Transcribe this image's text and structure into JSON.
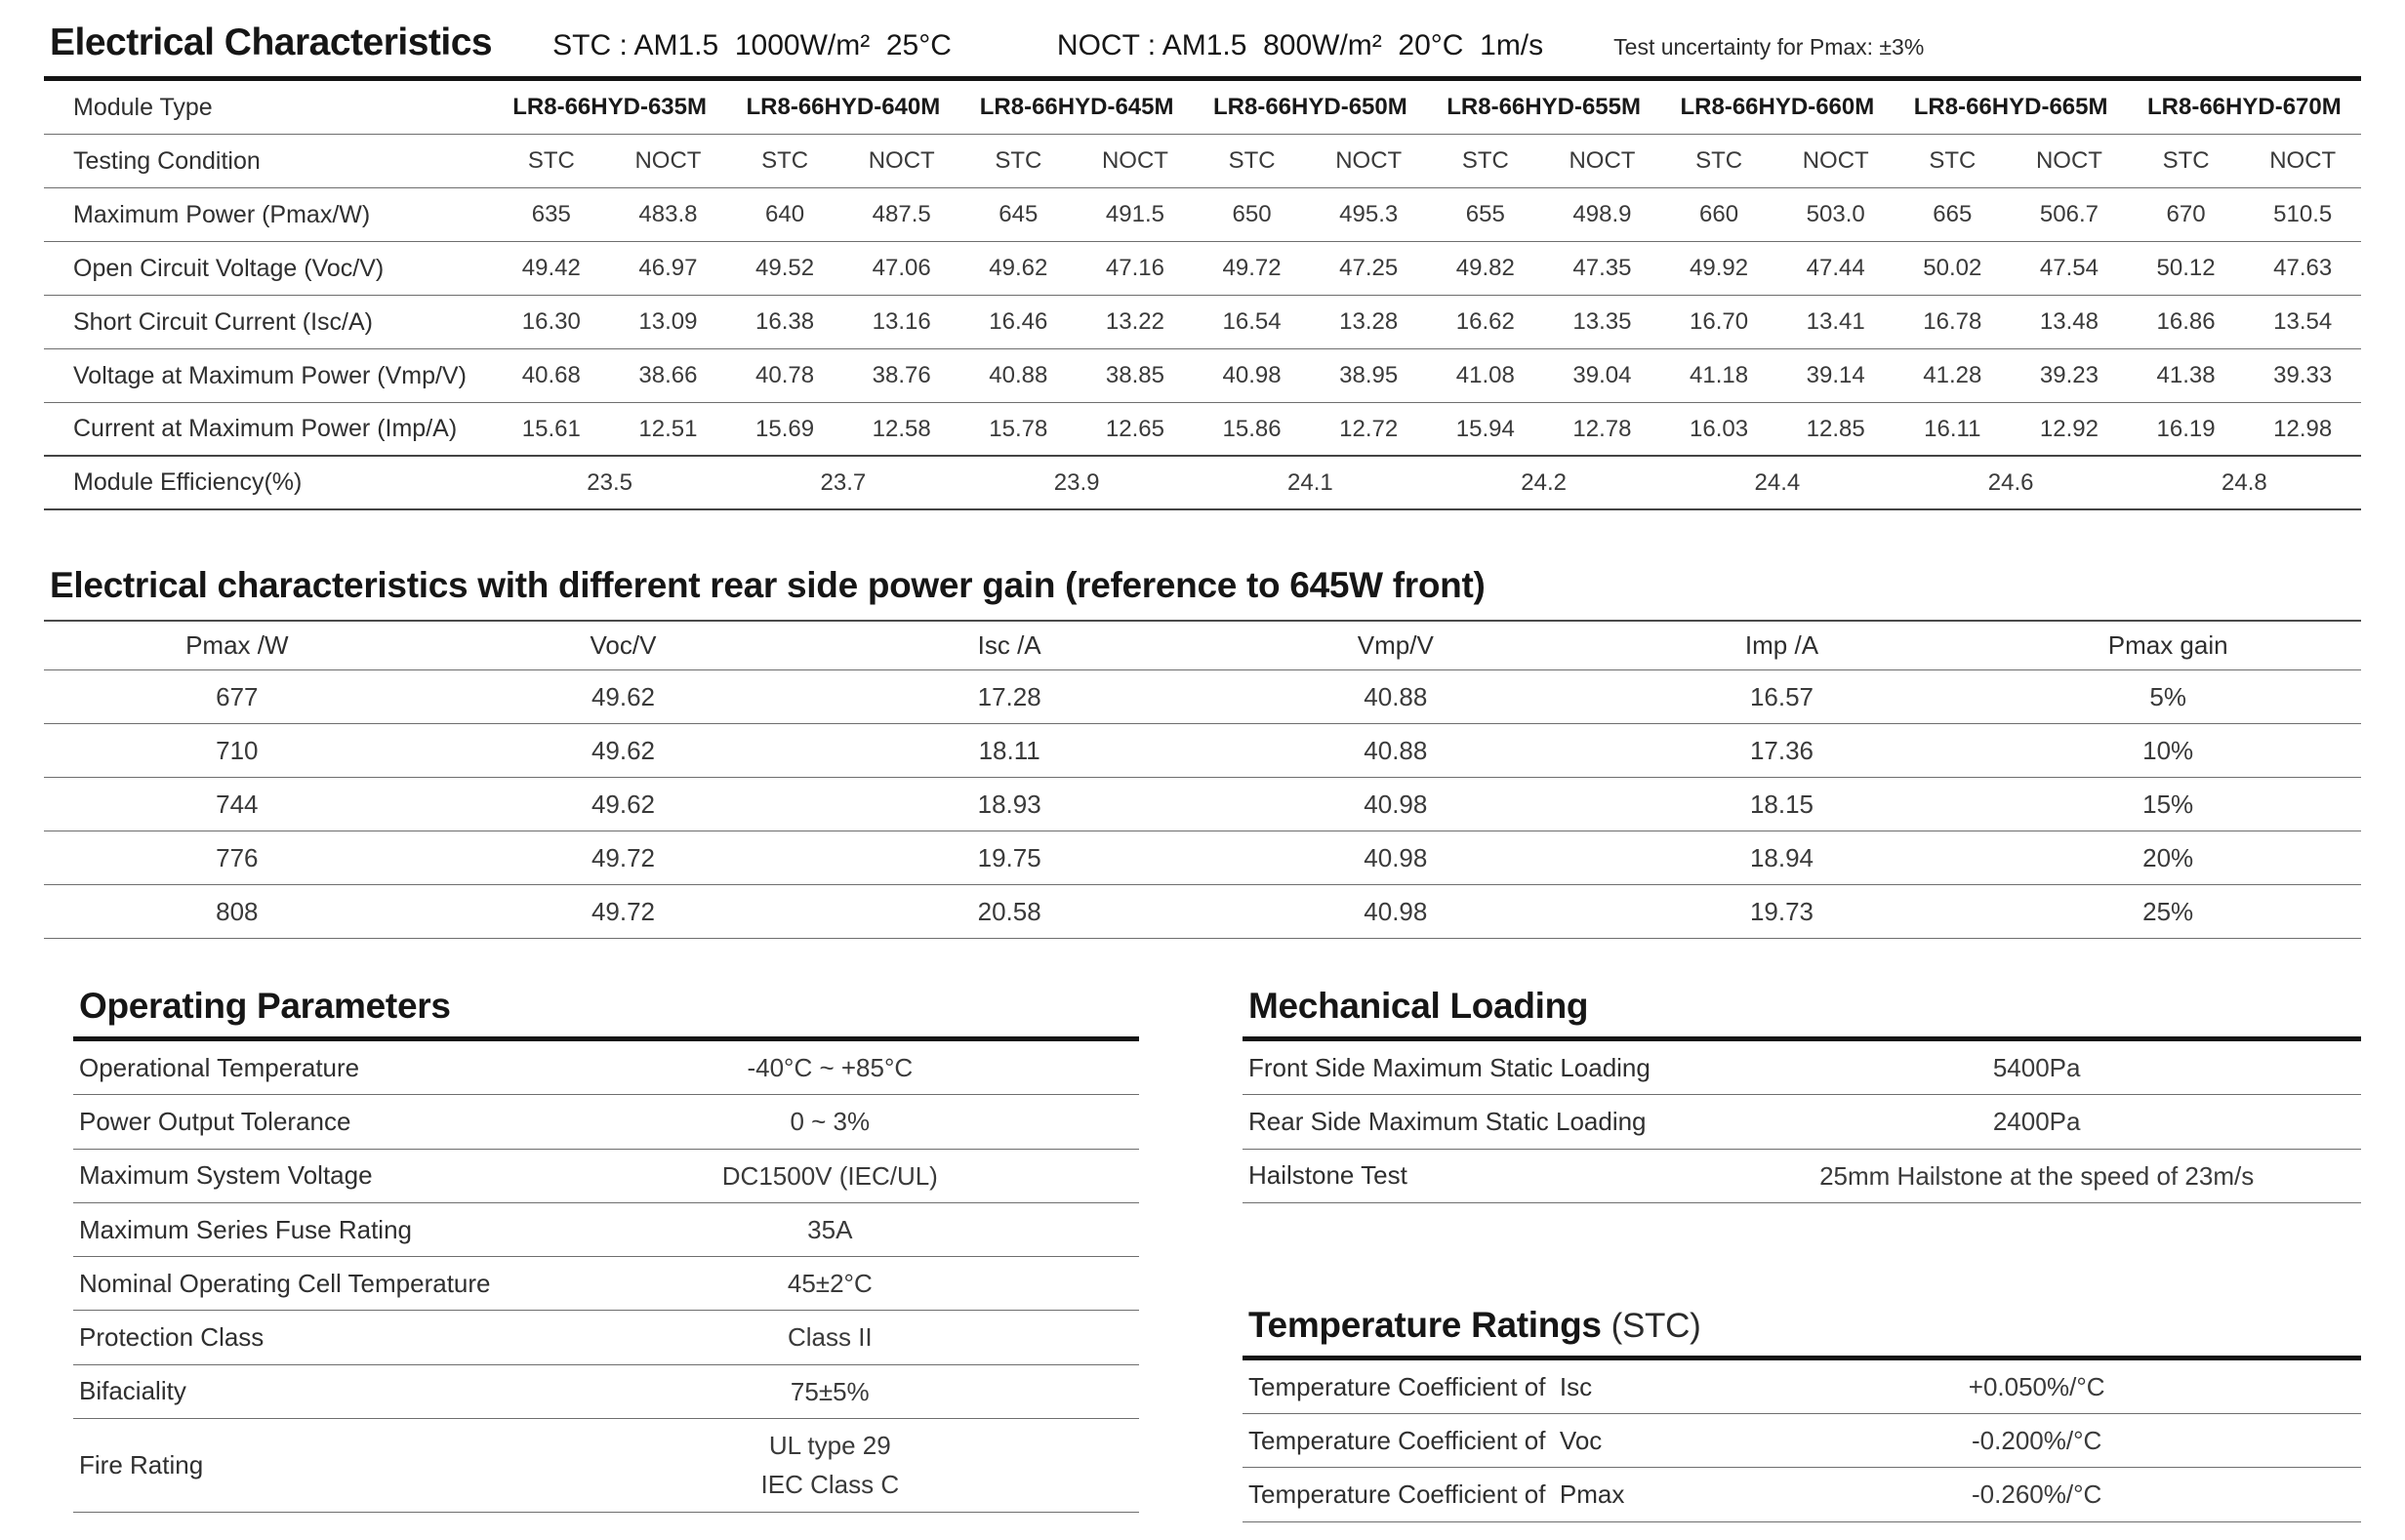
{
  "electrical": {
    "title": "Electrical Characteristics",
    "stc_condition": "STC : AM1.5  1000W/m²  25°C",
    "noct_condition": "NOCT : AM1.5  800W/m²  20°C  1m/s",
    "uncertainty_note": "Test uncertainty for Pmax: ±3%",
    "module_type_label": "Module Type",
    "testing_condition_label": "Testing Condition",
    "module_types": [
      "LR8-66HYD-635M",
      "LR8-66HYD-640M",
      "LR8-66HYD-645M",
      "LR8-66HYD-650M",
      "LR8-66HYD-655M",
      "LR8-66HYD-660M",
      "LR8-66HYD-665M",
      "LR8-66HYD-670M"
    ],
    "testing_conditions": [
      "STC",
      "NOCT",
      "STC",
      "NOCT",
      "STC",
      "NOCT",
      "STC",
      "NOCT",
      "STC",
      "NOCT",
      "STC",
      "NOCT",
      "STC",
      "NOCT",
      "STC",
      "NOCT"
    ],
    "rows": [
      {
        "label": "Maximum Power (Pmax/W)",
        "values": [
          "635",
          "483.8",
          "640",
          "487.5",
          "645",
          "491.5",
          "650",
          "495.3",
          "655",
          "498.9",
          "660",
          "503.0",
          "665",
          "506.7",
          "670",
          "510.5"
        ]
      },
      {
        "label": "Open Circuit Voltage (Voc/V)",
        "values": [
          "49.42",
          "46.97",
          "49.52",
          "47.06",
          "49.62",
          "47.16",
          "49.72",
          "47.25",
          "49.82",
          "47.35",
          "49.92",
          "47.44",
          "50.02",
          "47.54",
          "50.12",
          "47.63"
        ]
      },
      {
        "label": "Short Circuit Current (Isc/A)",
        "values": [
          "16.30",
          "13.09",
          "16.38",
          "13.16",
          "16.46",
          "13.22",
          "16.54",
          "13.28",
          "16.62",
          "13.35",
          "16.70",
          "13.41",
          "16.78",
          "13.48",
          "16.86",
          "13.54"
        ]
      },
      {
        "label": "Voltage at Maximum Power (Vmp/V)",
        "values": [
          "40.68",
          "38.66",
          "40.78",
          "38.76",
          "40.88",
          "38.85",
          "40.98",
          "38.95",
          "41.08",
          "39.04",
          "41.18",
          "39.14",
          "41.28",
          "39.23",
          "41.38",
          "39.33"
        ]
      },
      {
        "label": "Current at Maximum Power (Imp/A)",
        "values": [
          "15.61",
          "12.51",
          "15.69",
          "12.58",
          "15.78",
          "12.65",
          "15.86",
          "12.72",
          "15.94",
          "12.78",
          "16.03",
          "12.85",
          "16.11",
          "12.92",
          "16.19",
          "12.98"
        ]
      }
    ],
    "efficiency": {
      "label": "Module Efficiency(%)",
      "values": [
        "23.5",
        "23.7",
        "23.9",
        "24.1",
        "24.2",
        "24.4",
        "24.6",
        "24.8"
      ]
    }
  },
  "rear_gain": {
    "title": "Electrical characteristics with different rear side power gain (reference to 645W front)",
    "headers": [
      "Pmax /W",
      "Voc/V",
      "Isc /A",
      "Vmp/V",
      "Imp /A",
      "Pmax gain"
    ],
    "rows": [
      [
        "677",
        "49.62",
        "17.28",
        "40.88",
        "16.57",
        "5%"
      ],
      [
        "710",
        "49.62",
        "18.11",
        "40.88",
        "17.36",
        "10%"
      ],
      [
        "744",
        "49.62",
        "18.93",
        "40.98",
        "18.15",
        "15%"
      ],
      [
        "776",
        "49.72",
        "19.75",
        "40.98",
        "18.94",
        "20%"
      ],
      [
        "808",
        "49.72",
        "20.58",
        "40.98",
        "19.73",
        "25%"
      ]
    ]
  },
  "operating": {
    "title": "Operating Parameters",
    "rows": [
      {
        "label": "Operational Temperature",
        "value": "-40°C ~ +85°C"
      },
      {
        "label": "Power Output Tolerance",
        "value": "0 ~ 3%"
      },
      {
        "label": "Maximum System Voltage",
        "value": "DC1500V (IEC/UL)"
      },
      {
        "label": "Maximum Series Fuse Rating",
        "value": "35A"
      },
      {
        "label": "Nominal Operating Cell Temperature",
        "value": "45±2°C"
      },
      {
        "label": "Protection Class",
        "value": "Class II"
      },
      {
        "label": "Bifaciality",
        "value": "75±5%"
      },
      {
        "label": "Fire Rating",
        "value": "UL type 29\nIEC Class C"
      }
    ]
  },
  "mechanical": {
    "title": "Mechanical Loading",
    "rows": [
      {
        "label": "Front Side Maximum Static Loading",
        "value": "5400Pa"
      },
      {
        "label": "Rear Side Maximum Static Loading",
        "value": "2400Pa"
      },
      {
        "label": "Hailstone Test",
        "value": "25mm Hailstone at the speed of 23m/s"
      }
    ]
  },
  "temperature": {
    "title": "Temperature Ratings ",
    "title_suffix": "(STC)",
    "rows": [
      {
        "label": "Temperature Coefficient of  Isc",
        "value": "+0.050%/°C"
      },
      {
        "label": "Temperature Coefficient of  Voc",
        "value": "-0.200%/°C"
      },
      {
        "label": "Temperature Coefficient of  Pmax",
        "value": "-0.260%/°C"
      }
    ]
  }
}
